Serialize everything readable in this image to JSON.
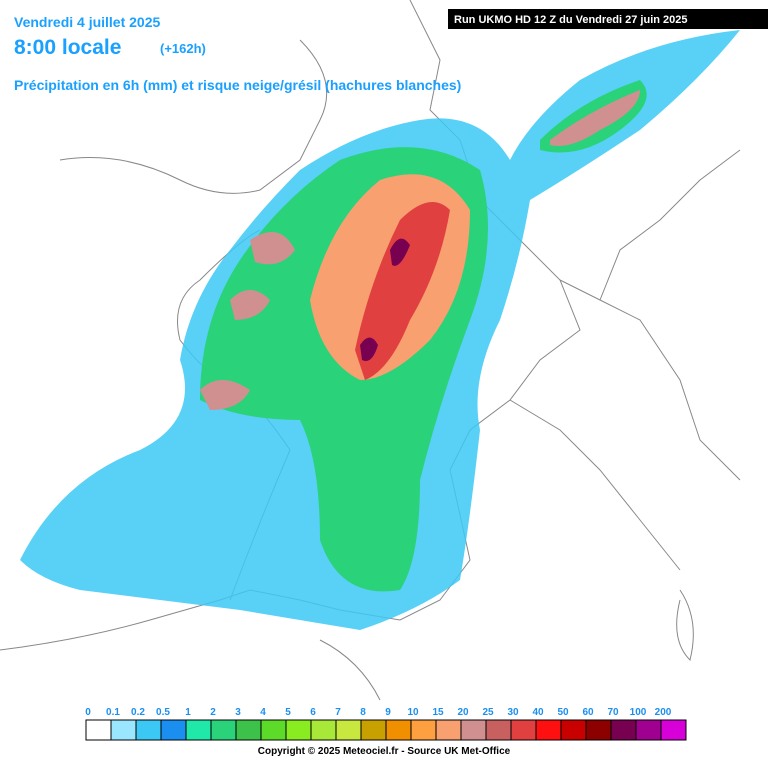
{
  "header": {
    "date": "Vendredi 4 juillet 2025",
    "time": "8:00 locale",
    "lead": "(+162h)",
    "subtitle": "Précipitation en 6h (mm) et risque neige/grésil (hachures blanches)",
    "run": "Run UKMO HD 12 Z du Vendredi 27 juin 2025"
  },
  "legend": {
    "ticks": [
      0,
      0.1,
      0.2,
      0.5,
      1,
      2,
      3,
      4,
      5,
      6,
      7,
      8,
      9,
      10,
      15,
      20,
      25,
      30,
      40,
      50,
      60,
      70,
      100,
      200
    ],
    "colors": [
      "#ffffff",
      "#9ae6ff",
      "#3cc8f5",
      "#1a8ff0",
      "#20e8a8",
      "#2ad27a",
      "#3cc24a",
      "#5cdc28",
      "#88ec20",
      "#a8e838",
      "#c8e840",
      "#c8a000",
      "#f09000",
      "#ffa040",
      "#f8a070",
      "#d09090",
      "#c86060",
      "#e04040",
      "#ff1010",
      "#c80000",
      "#8c0000",
      "#780050",
      "#a00090",
      "#d800d8"
    ]
  },
  "footer": {
    "copyright": "Copyright © 2025 Meteociel.fr - Source UK Met-Office"
  }
}
